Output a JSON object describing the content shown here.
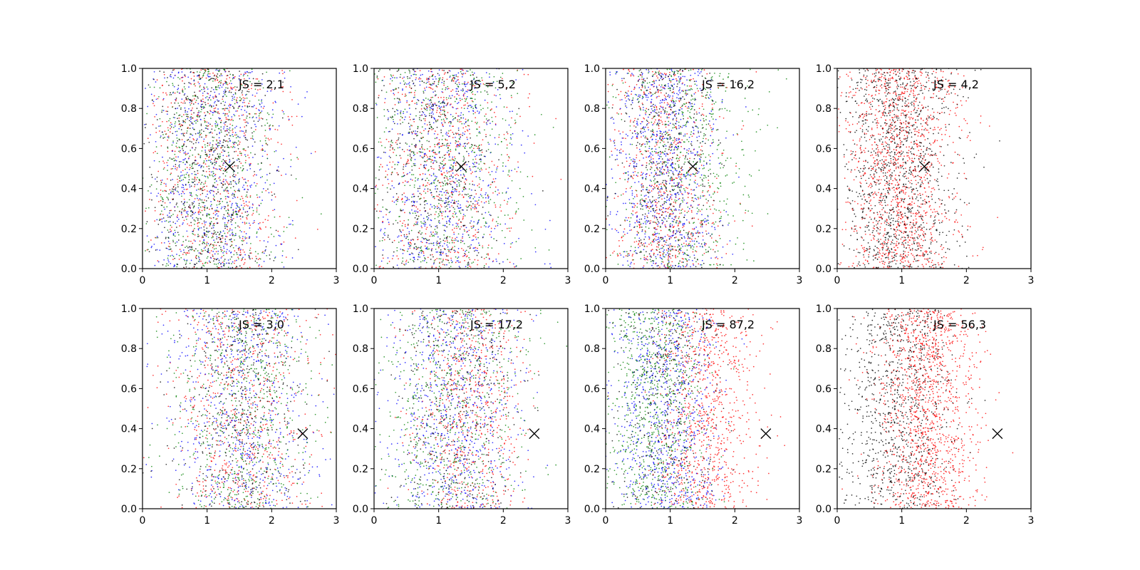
{
  "chart_data": [
    {
      "type": "scatter",
      "panel": "row1-col1",
      "annotation": "JS = 2,1",
      "xlim": [
        0,
        3
      ],
      "ylim": [
        0,
        1
      ],
      "x_ticks": [
        "0",
        "1",
        "2",
        "3"
      ],
      "y_ticks": [
        "0.0",
        "0.2",
        "0.4",
        "0.6",
        "0.8",
        "1.0"
      ],
      "marker": {
        "x": 1.35,
        "y": 0.51,
        "color": "#000000",
        "symbol": "x"
      },
      "series": [
        {
          "color": "#ff0000",
          "x_mean": 1.15,
          "x_sd": 0.55,
          "count": 650
        },
        {
          "color": "#0000ff",
          "x_mean": 1.1,
          "x_sd": 0.55,
          "count": 650
        },
        {
          "color": "#008000",
          "x_mean": 1.05,
          "x_sd": 0.55,
          "count": 650
        },
        {
          "color": "#000000",
          "x_mean": 1.0,
          "x_sd": 0.5,
          "count": 550
        }
      ]
    },
    {
      "type": "scatter",
      "panel": "row1-col2",
      "annotation": "JS = 5,2",
      "xlim": [
        0,
        3
      ],
      "ylim": [
        0,
        1
      ],
      "x_ticks": [
        "0",
        "1",
        "2",
        "3"
      ],
      "y_ticks": [
        "0.0",
        "0.2",
        "0.4",
        "0.6",
        "0.8",
        "1.0"
      ],
      "marker": {
        "x": 1.35,
        "y": 0.51,
        "color": "#000000",
        "symbol": "x"
      },
      "series": [
        {
          "color": "#ff0000",
          "x_mean": 1.05,
          "x_sd": 0.55,
          "count": 650
        },
        {
          "color": "#0000ff",
          "x_mean": 1.05,
          "x_sd": 0.55,
          "count": 650
        },
        {
          "color": "#008000",
          "x_mean": 1.15,
          "x_sd": 0.6,
          "count": 650
        },
        {
          "color": "#000000",
          "x_mean": 0.95,
          "x_sd": 0.5,
          "count": 400
        }
      ]
    },
    {
      "type": "scatter",
      "panel": "row1-col3",
      "annotation": "JS = 16,2",
      "xlim": [
        0,
        3
      ],
      "ylim": [
        0,
        1
      ],
      "x_ticks": [
        "0",
        "1",
        "2",
        "3"
      ],
      "y_ticks": [
        "0.0",
        "0.2",
        "0.4",
        "0.6",
        "0.8",
        "1.0"
      ],
      "marker": {
        "x": 1.35,
        "y": 0.51,
        "color": "#000000",
        "symbol": "x"
      },
      "series": [
        {
          "color": "#ff0000",
          "x_mean": 0.9,
          "x_sd": 0.45,
          "count": 700
        },
        {
          "color": "#0000ff",
          "x_mean": 0.9,
          "x_sd": 0.45,
          "count": 800
        },
        {
          "color": "#008000",
          "x_mean": 1.2,
          "x_sd": 0.55,
          "count": 650
        },
        {
          "color": "#000000",
          "x_mean": 0.9,
          "x_sd": 0.4,
          "count": 400
        }
      ]
    },
    {
      "type": "scatter",
      "panel": "row1-col4",
      "annotation": "JS = 4,2",
      "xlim": [
        0,
        3
      ],
      "ylim": [
        0,
        1
      ],
      "x_ticks": [
        "0",
        "1",
        "2",
        "3"
      ],
      "y_ticks": [
        "0.0",
        "0.2",
        "0.4",
        "0.6",
        "0.8",
        "1.0"
      ],
      "marker": {
        "x": 1.35,
        "y": 0.51,
        "color": "#000000",
        "symbol": "x"
      },
      "series": [
        {
          "color": "#ff0000",
          "x_mean": 1.0,
          "x_sd": 0.45,
          "count": 1300
        },
        {
          "color": "#000000",
          "x_mean": 0.95,
          "x_sd": 0.45,
          "count": 1100
        }
      ]
    },
    {
      "type": "scatter",
      "panel": "row2-col1",
      "annotation": "JS = 3,0",
      "xlim": [
        0,
        3
      ],
      "ylim": [
        0,
        1
      ],
      "x_ticks": [
        "0",
        "1",
        "2",
        "3"
      ],
      "y_ticks": [
        "0.0",
        "0.2",
        "0.4",
        "0.6",
        "0.8",
        "1.0"
      ],
      "marker": {
        "x": 2.48,
        "y": 0.375,
        "color": "#000000",
        "symbol": "x"
      },
      "series": [
        {
          "color": "#ff0000",
          "x_mean": 1.55,
          "x_sd": 0.55,
          "count": 650
        },
        {
          "color": "#0000ff",
          "x_mean": 1.5,
          "x_sd": 0.55,
          "count": 650
        },
        {
          "color": "#008000",
          "x_mean": 1.6,
          "x_sd": 0.55,
          "count": 650
        },
        {
          "color": "#000000",
          "x_mean": 1.55,
          "x_sd": 0.5,
          "count": 400
        }
      ]
    },
    {
      "type": "scatter",
      "panel": "row2-col2",
      "annotation": "JS = 17,2",
      "xlim": [
        0,
        3
      ],
      "ylim": [
        0,
        1
      ],
      "x_ticks": [
        "0",
        "1",
        "2",
        "3"
      ],
      "y_ticks": [
        "0.0",
        "0.2",
        "0.4",
        "0.6",
        "0.8",
        "1.0"
      ],
      "marker": {
        "x": 2.48,
        "y": 0.375,
        "color": "#000000",
        "symbol": "x"
      },
      "series": [
        {
          "color": "#ff0000",
          "x_mean": 1.45,
          "x_sd": 0.45,
          "count": 650
        },
        {
          "color": "#0000ff",
          "x_mean": 1.25,
          "x_sd": 0.55,
          "count": 700
        },
        {
          "color": "#008000",
          "x_mean": 1.2,
          "x_sd": 0.6,
          "count": 650
        },
        {
          "color": "#000000",
          "x_mean": 1.3,
          "x_sd": 0.45,
          "count": 350
        }
      ]
    },
    {
      "type": "scatter",
      "panel": "row2-col3",
      "annotation": "JS = 87,2",
      "xlim": [
        0,
        3
      ],
      "ylim": [
        0,
        1
      ],
      "x_ticks": [
        "0",
        "1",
        "2",
        "3"
      ],
      "y_ticks": [
        "0.0",
        "0.2",
        "0.4",
        "0.6",
        "0.8",
        "1.0"
      ],
      "marker": {
        "x": 2.48,
        "y": 0.375,
        "color": "#000000",
        "symbol": "x"
      },
      "series": [
        {
          "color": "#ff0000",
          "x_mean": 1.55,
          "x_sd": 0.4,
          "count": 900
        },
        {
          "color": "#0000ff",
          "x_mean": 0.95,
          "x_sd": 0.4,
          "count": 800
        },
        {
          "color": "#008000",
          "x_mean": 0.75,
          "x_sd": 0.4,
          "count": 800
        },
        {
          "color": "#000000",
          "x_mean": 0.9,
          "x_sd": 0.4,
          "count": 300
        }
      ]
    },
    {
      "type": "scatter",
      "panel": "row2-col4",
      "annotation": "JS = 56,3",
      "xlim": [
        0,
        3
      ],
      "ylim": [
        0,
        1
      ],
      "x_ticks": [
        "0",
        "1",
        "2",
        "3"
      ],
      "y_ticks": [
        "0.0",
        "0.2",
        "0.4",
        "0.6",
        "0.8",
        "1.0"
      ],
      "marker": {
        "x": 2.48,
        "y": 0.375,
        "color": "#000000",
        "symbol": "x"
      },
      "series": [
        {
          "color": "#ff0000",
          "x_mean": 1.4,
          "x_sd": 0.4,
          "count": 1300
        },
        {
          "color": "#000000",
          "x_mean": 0.9,
          "x_sd": 0.45,
          "count": 900
        }
      ]
    }
  ]
}
